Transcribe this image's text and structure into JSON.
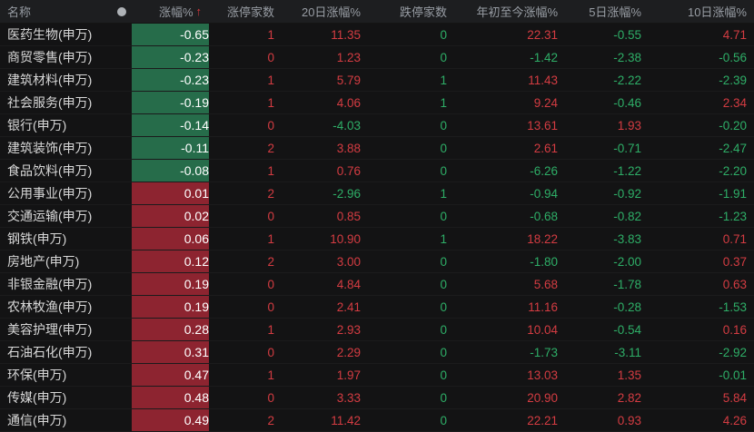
{
  "header": {
    "dot_icon": "●",
    "sort_arrow": "↑",
    "columns": [
      {
        "label": "名称"
      },
      {
        "label": "涨幅%"
      },
      {
        "label": "涨停家数"
      },
      {
        "label": "20日涨幅%"
      },
      {
        "label": "跌停家数"
      },
      {
        "label": "年初至今涨幅%"
      },
      {
        "label": "5日涨幅%"
      },
      {
        "label": "10日涨幅%"
      }
    ]
  },
  "colors": {
    "positive_text": "#d43c42",
    "negative_text": "#2eae67",
    "positive_cell_bg": "#8d2430",
    "negative_cell_bg": "#266c4a",
    "header_bg": "#1d1e20",
    "page_bg": "#131314"
  },
  "rows": [
    {
      "name": "医药生物(申万)",
      "change": "-0.65",
      "limit_up": "1",
      "chg20d": "11.35",
      "limit_down": "0",
      "ytd": "22.31",
      "chg5d": "-0.55",
      "chg10d": "4.71"
    },
    {
      "name": "商贸零售(申万)",
      "change": "-0.23",
      "limit_up": "0",
      "chg20d": "1.23",
      "limit_down": "0",
      "ytd": "-1.42",
      "chg5d": "-2.38",
      "chg10d": "-0.56"
    },
    {
      "name": "建筑材料(申万)",
      "change": "-0.23",
      "limit_up": "1",
      "chg20d": "5.79",
      "limit_down": "1",
      "ytd": "11.43",
      "chg5d": "-2.22",
      "chg10d": "-2.39"
    },
    {
      "name": "社会服务(申万)",
      "change": "-0.19",
      "limit_up": "1",
      "chg20d": "4.06",
      "limit_down": "1",
      "ytd": "9.24",
      "chg5d": "-0.46",
      "chg10d": "2.34"
    },
    {
      "name": "银行(申万)",
      "change": "-0.14",
      "limit_up": "0",
      "chg20d": "-4.03",
      "limit_down": "0",
      "ytd": "13.61",
      "chg5d": "1.93",
      "chg10d": "-0.20"
    },
    {
      "name": "建筑装饰(申万)",
      "change": "-0.11",
      "limit_up": "2",
      "chg20d": "3.88",
      "limit_down": "0",
      "ytd": "2.61",
      "chg5d": "-0.71",
      "chg10d": "-2.47"
    },
    {
      "name": "食品饮料(申万)",
      "change": "-0.08",
      "limit_up": "1",
      "chg20d": "0.76",
      "limit_down": "0",
      "ytd": "-6.26",
      "chg5d": "-1.22",
      "chg10d": "-2.20"
    },
    {
      "name": "公用事业(申万)",
      "change": "0.01",
      "limit_up": "2",
      "chg20d": "-2.96",
      "limit_down": "1",
      "ytd": "-0.94",
      "chg5d": "-0.92",
      "chg10d": "-1.91"
    },
    {
      "name": "交通运输(申万)",
      "change": "0.02",
      "limit_up": "0",
      "chg20d": "0.85",
      "limit_down": "0",
      "ytd": "-0.68",
      "chg5d": "-0.82",
      "chg10d": "-1.23"
    },
    {
      "name": "钢铁(申万)",
      "change": "0.06",
      "limit_up": "1",
      "chg20d": "10.90",
      "limit_down": "1",
      "ytd": "18.22",
      "chg5d": "-3.83",
      "chg10d": "0.71"
    },
    {
      "name": "房地产(申万)",
      "change": "0.12",
      "limit_up": "2",
      "chg20d": "3.00",
      "limit_down": "0",
      "ytd": "-1.80",
      "chg5d": "-2.00",
      "chg10d": "0.37"
    },
    {
      "name": "非银金融(申万)",
      "change": "0.19",
      "limit_up": "0",
      "chg20d": "4.84",
      "limit_down": "0",
      "ytd": "5.68",
      "chg5d": "-1.78",
      "chg10d": "0.63"
    },
    {
      "name": "农林牧渔(申万)",
      "change": "0.19",
      "limit_up": "0",
      "chg20d": "2.41",
      "limit_down": "0",
      "ytd": "11.16",
      "chg5d": "-0.28",
      "chg10d": "-1.53"
    },
    {
      "name": "美容护理(申万)",
      "change": "0.28",
      "limit_up": "1",
      "chg20d": "2.93",
      "limit_down": "0",
      "ytd": "10.04",
      "chg5d": "-0.54",
      "chg10d": "0.16"
    },
    {
      "name": "石油石化(申万)",
      "change": "0.31",
      "limit_up": "0",
      "chg20d": "2.29",
      "limit_down": "0",
      "ytd": "-1.73",
      "chg5d": "-3.11",
      "chg10d": "-2.92"
    },
    {
      "name": "环保(申万)",
      "change": "0.47",
      "limit_up": "1",
      "chg20d": "1.97",
      "limit_down": "0",
      "ytd": "13.03",
      "chg5d": "1.35",
      "chg10d": "-0.01"
    },
    {
      "name": "传媒(申万)",
      "change": "0.48",
      "limit_up": "0",
      "chg20d": "3.33",
      "limit_down": "0",
      "ytd": "20.90",
      "chg5d": "2.82",
      "chg10d": "5.84"
    },
    {
      "name": "通信(申万)",
      "change": "0.49",
      "limit_up": "2",
      "chg20d": "11.42",
      "limit_down": "0",
      "ytd": "22.21",
      "chg5d": "0.93",
      "chg10d": "4.26"
    }
  ]
}
